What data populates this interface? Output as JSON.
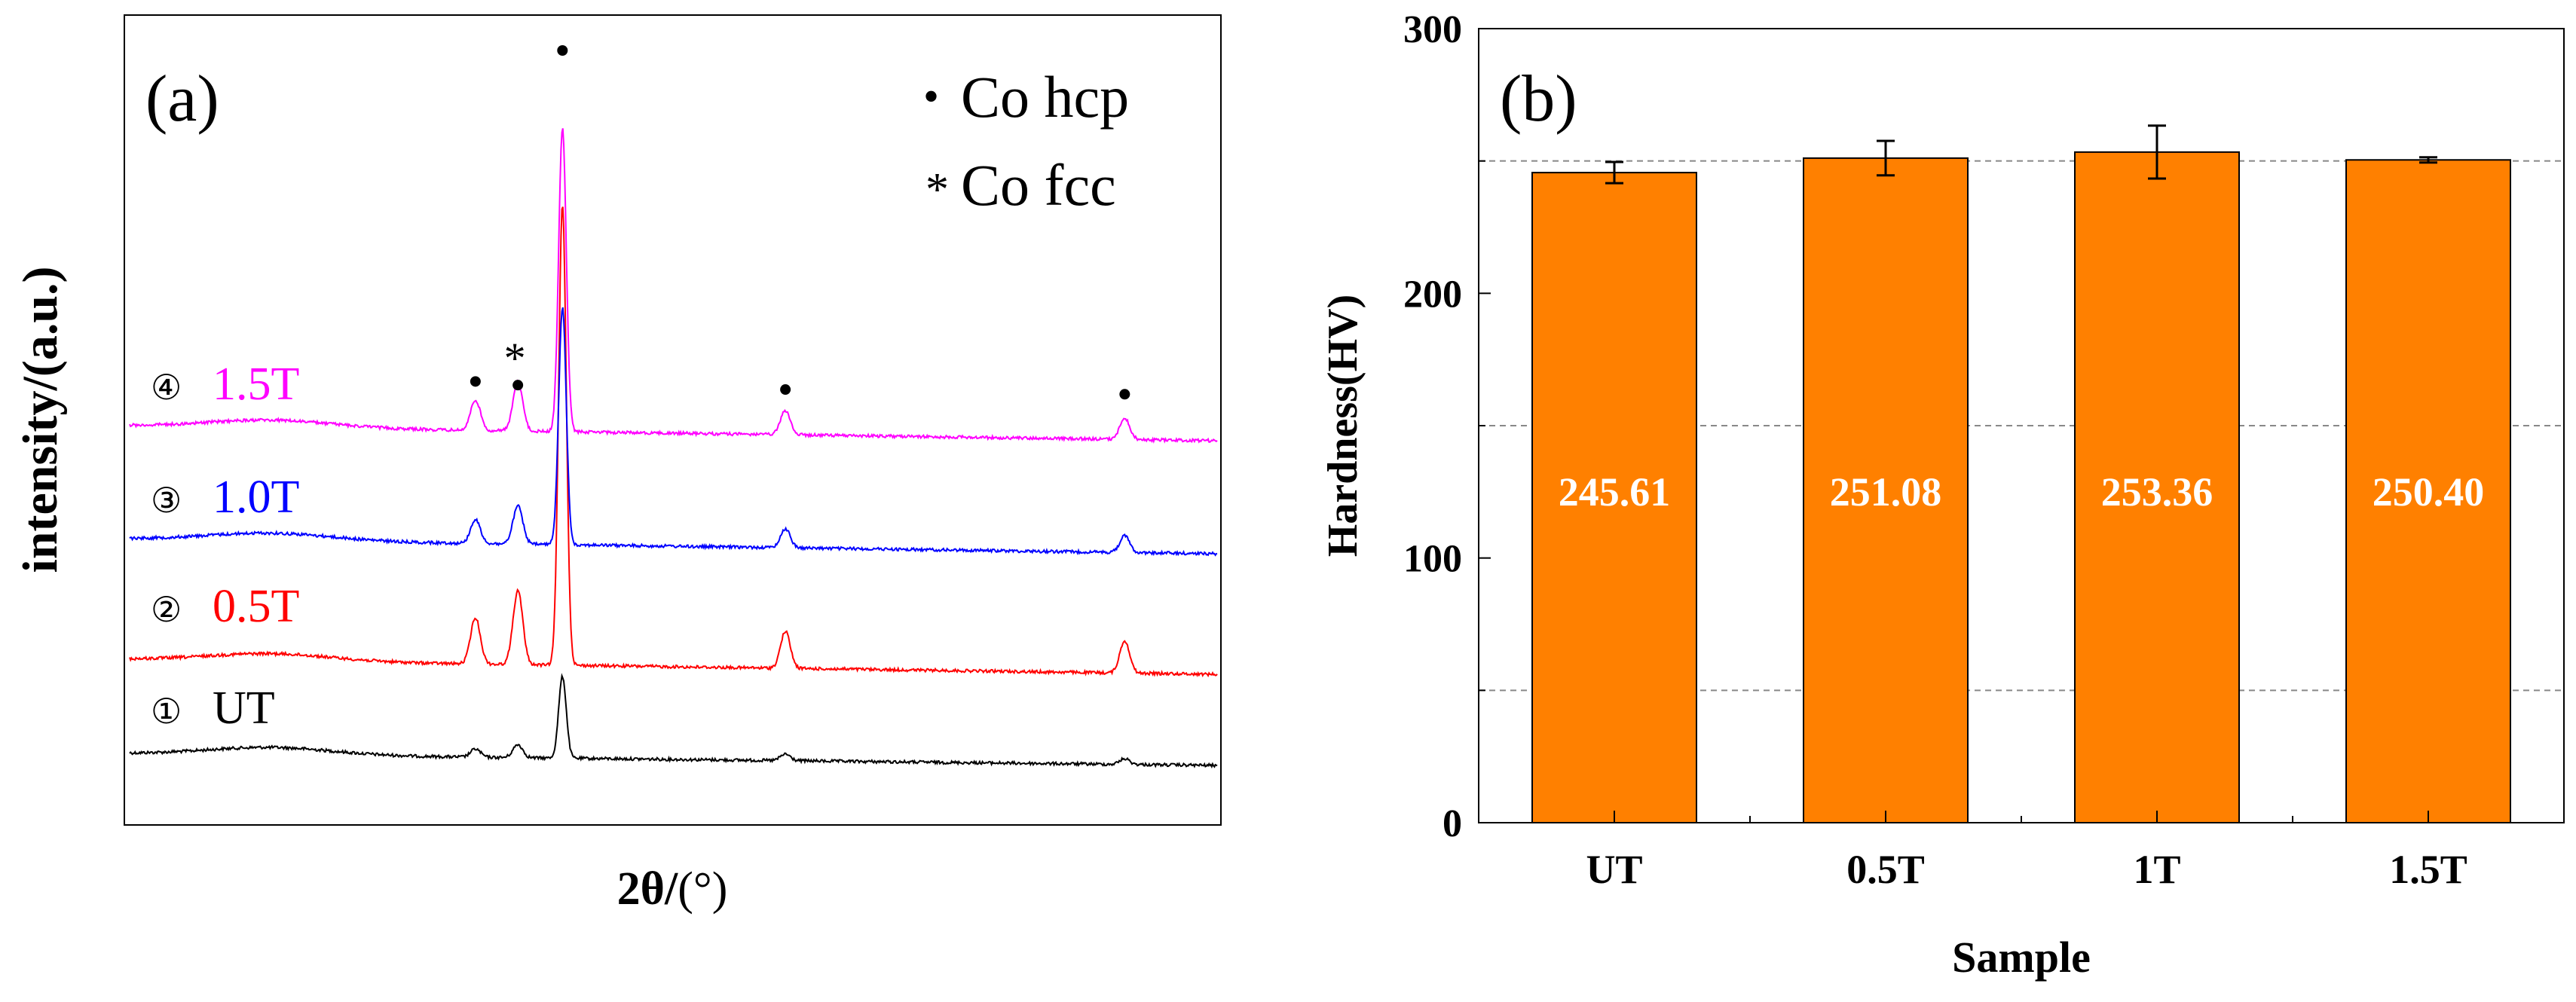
{
  "chart_data": [
    {
      "panel": "(a)",
      "type": "line",
      "title": "",
      "xlabel_main": "2θ/",
      "xlabel_unit": "(°)",
      "ylabel": "intensity/(a.u.)",
      "legend": [
        {
          "marker": "•",
          "label": "Co hcp"
        },
        {
          "marker": "*",
          "label": "Co fcc"
        }
      ],
      "peaks": [
        {
          "position": 0.318,
          "rel_height": 0.1,
          "phase": "Co hcp"
        },
        {
          "position": 0.357,
          "rel_height": 0.16,
          "phase": "Co fcc"
        },
        {
          "position": 0.398,
          "rel_height": 1.0,
          "phase": "Co hcp"
        },
        {
          "position": 0.603,
          "rel_height": 0.08,
          "phase": "Co hcp"
        },
        {
          "position": 0.915,
          "rel_height": 0.07,
          "phase": "Co hcp"
        }
      ],
      "series": [
        {
          "index_marker": "①",
          "name": "UT",
          "color": "#000000",
          "peak_intensity": 0.62
        },
        {
          "index_marker": "②",
          "name": "0.5T",
          "color": "#ff0000",
          "peak_intensity": 3.5
        },
        {
          "index_marker": "③",
          "name": "1.0T",
          "color": "#0000ff",
          "peak_intensity": 1.8
        },
        {
          "index_marker": "④",
          "name": "1.5T",
          "color": "#ff00ff",
          "peak_intensity": 2.3
        }
      ]
    },
    {
      "panel": "(b)",
      "type": "bar",
      "title": "",
      "xlabel": "Sample",
      "ylabel": "Hardness(HV)",
      "ylim": [
        0,
        300
      ],
      "yticks": [
        0,
        100,
        200,
        300
      ],
      "gridlines": [
        50,
        150,
        250
      ],
      "categories": [
        "UT",
        "0.5T",
        "1T",
        "1.5T"
      ],
      "values": [
        245.61,
        251.08,
        253.36,
        250.4
      ],
      "value_labels": [
        "245.61",
        "251.08",
        "253.36",
        "250.40"
      ],
      "errors": [
        4,
        6.5,
        10,
        1
      ],
      "bar_color": "#ff8000"
    }
  ]
}
